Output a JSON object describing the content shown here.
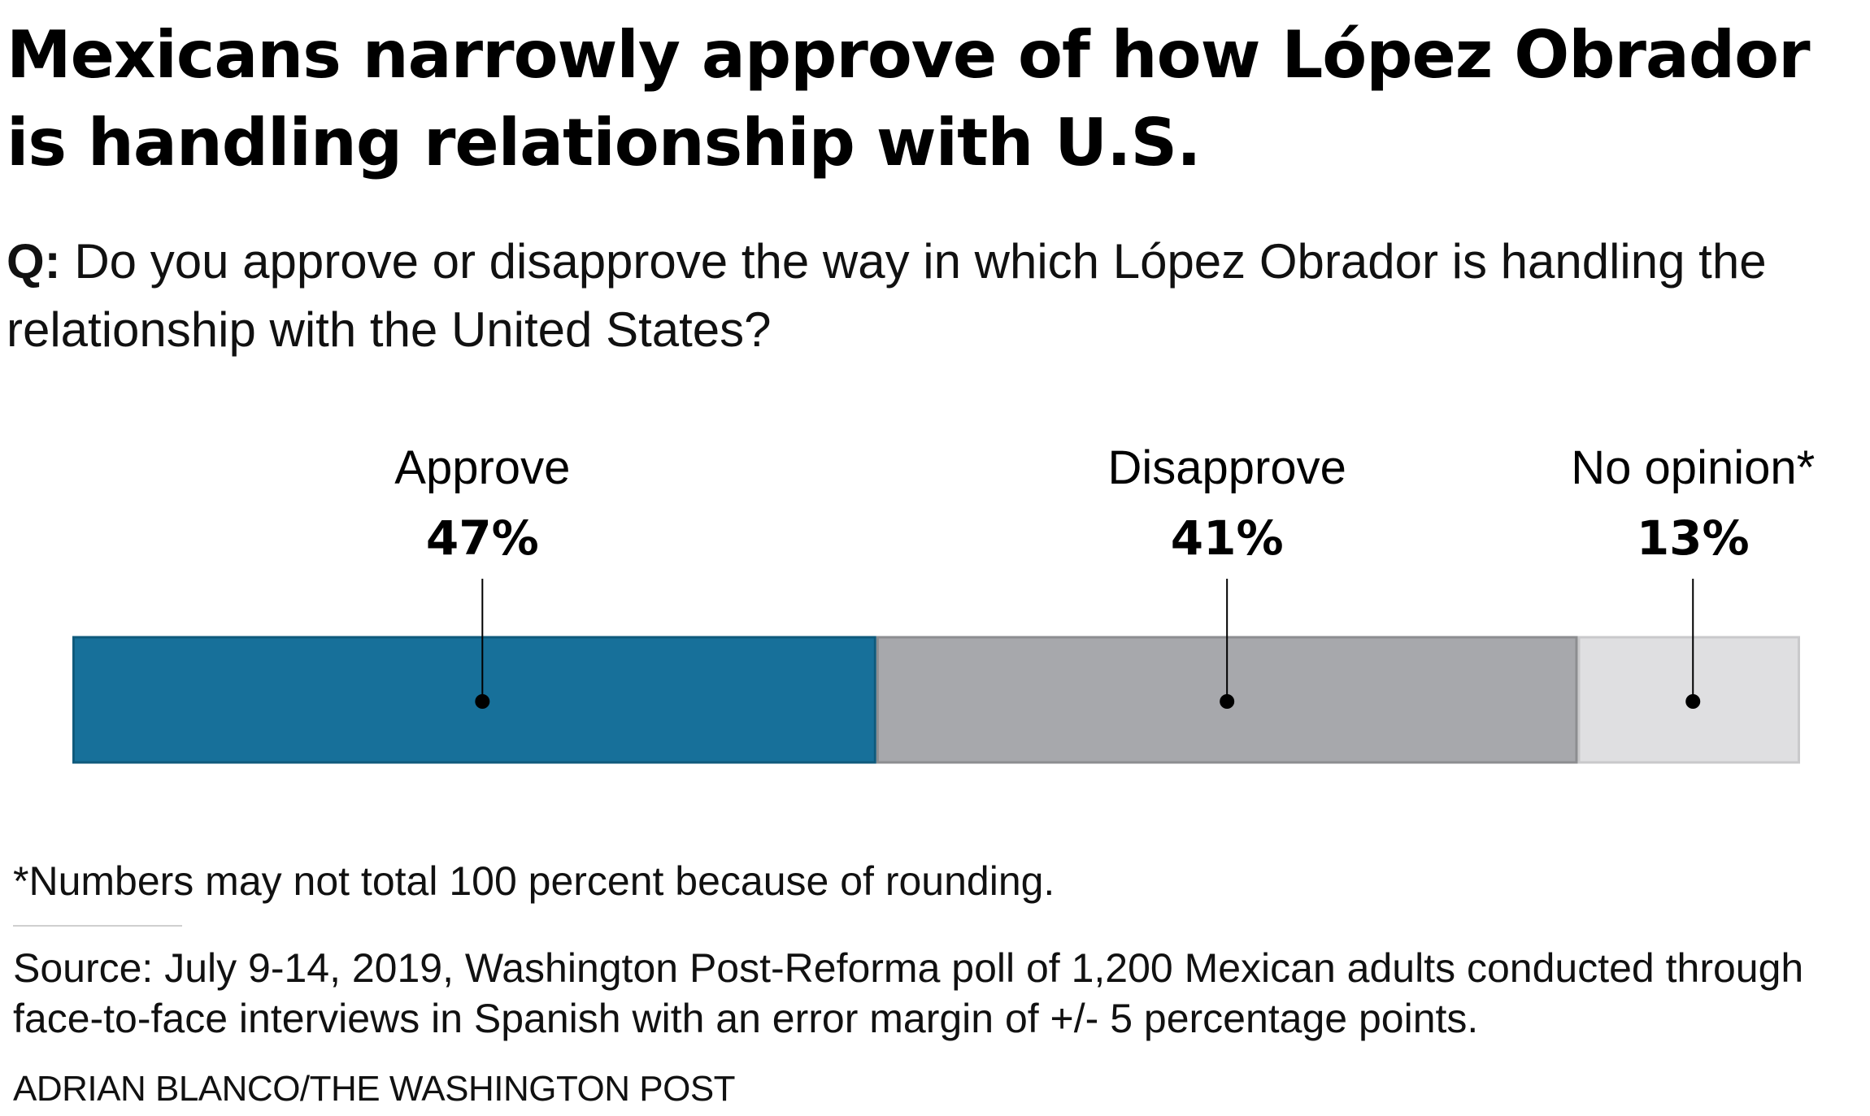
{
  "title": "Mexicans narrowly approve of how López Obrador is handling relationship with U.S.",
  "question": {
    "prefix": "Q:",
    "text": "Do you approve or disapprove the way in which López Obrador is handling the relationship with the United States?"
  },
  "chart_data": {
    "type": "bar",
    "orientation": "horizontal-stacked",
    "categories": [
      "Approve",
      "Disapprove",
      "No opinion*"
    ],
    "values": [
      47,
      41,
      13
    ],
    "value_labels": [
      "47%",
      "41%",
      "13%"
    ],
    "unit": "percent",
    "colors": [
      "#17709a",
      "#a7a8ac",
      "#dfdfe1"
    ],
    "stroke_colors": [
      "#0f5a7c",
      "#8c8d90",
      "#c9c9cb"
    ],
    "grid": false,
    "legend": "labels above segments"
  },
  "note": "*Numbers may not total 100 percent because of rounding.",
  "source": "Source: July 9-14, 2019, Washington Post-Reforma poll of 1,200 Mexican adults conducted through face-to-face interviews in Spanish with an error margin of +/- 5 percentage points.",
  "credit": "ADRIAN BLANCO/THE WASHINGTON POST"
}
